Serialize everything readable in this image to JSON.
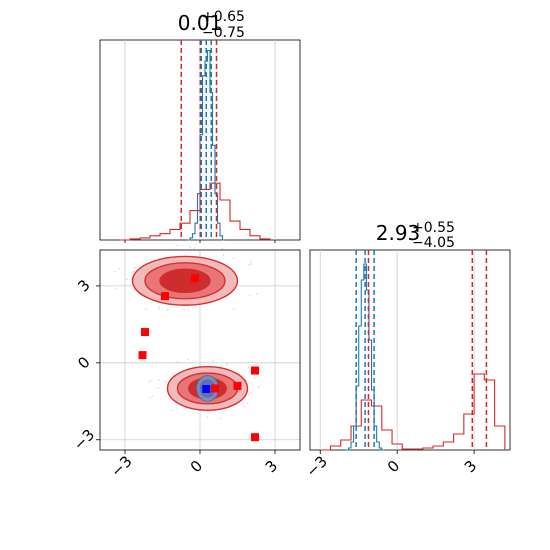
{
  "chart_data": [
    {
      "panel": "param1-marginal",
      "type": "histogram",
      "title": {
        "value": "0.01",
        "upper": "+0.65",
        "lower": "−0.75"
      },
      "xlim": [
        -4,
        4
      ],
      "grid": true,
      "series": [
        {
          "name": "",
          "color": "#1f77b4",
          "bins": [
            -0.5,
            -0.4,
            -0.3,
            -0.2,
            -0.1,
            0.0,
            0.1,
            0.2,
            0.3,
            0.4,
            0.5,
            0.6,
            0.7,
            0.8,
            0.9,
            1.0
          ],
          "heights": [
            0.0,
            0.01,
            0.03,
            0.08,
            0.22,
            0.5,
            0.78,
            0.85,
            0.9,
            0.7,
            0.45,
            0.22,
            0.08,
            0.02,
            0.0
          ]
        },
        {
          "name": "",
          "color": "#d62728",
          "bins": [
            -3.2,
            -2.8,
            -2.4,
            -2.0,
            -1.6,
            -1.2,
            -0.8,
            -0.4,
            0.0,
            0.4,
            0.8,
            1.2,
            1.6,
            2.0,
            2.4,
            2.8
          ],
          "heights": [
            0.0,
            0.005,
            0.01,
            0.02,
            0.03,
            0.05,
            0.08,
            0.14,
            0.24,
            0.27,
            0.19,
            0.09,
            0.05,
            0.02,
            0.005
          ]
        }
      ],
      "quantile_lines": [
        {
          "color": "#d62728",
          "values": [
            -0.75,
            0.01,
            0.66
          ]
        },
        {
          "color": "#1f77b4",
          "values": [
            0.05,
            0.25,
            0.45
          ]
        }
      ]
    },
    {
      "panel": "joint",
      "type": "contour-scatter",
      "xlim": [
        -4,
        4
      ],
      "ylim": [
        -3.4,
        4.4
      ],
      "xticks": [
        "−3",
        "0",
        "3"
      ],
      "yticks": [
        "−3",
        "0",
        "3"
      ],
      "grid": true,
      "red_modes": [
        {
          "cx": -0.6,
          "cy": 3.2,
          "rx": [
            2.1,
            1.6,
            1.0
          ],
          "ry": [
            0.95,
            0.7,
            0.45
          ]
        },
        {
          "cx": 0.3,
          "cy": -1.0,
          "rx": [
            1.6,
            1.2,
            0.75
          ],
          "ry": [
            0.85,
            0.6,
            0.4
          ]
        }
      ],
      "blue_mode": {
        "cx": 0.3,
        "cy": -1.0,
        "rx": [
          0.45,
          0.28
        ],
        "ry": [
          0.5,
          0.32
        ]
      },
      "red_points": [
        [
          -0.2,
          3.3
        ],
        [
          -1.4,
          2.6
        ],
        [
          -2.2,
          1.2
        ],
        [
          -2.3,
          0.3
        ],
        [
          2.2,
          -0.3
        ],
        [
          1.5,
          -0.9
        ],
        [
          2.2,
          -2.9
        ],
        [
          0.6,
          -1.0
        ]
      ],
      "blue_point": [
        0.25,
        -1.02
      ]
    },
    {
      "panel": "param2-marginal",
      "type": "histogram",
      "title": {
        "value": "2.93",
        "upper": "+0.55",
        "lower": "−4.05"
      },
      "xlim": [
        -3.4,
        4.4
      ],
      "xticks": [
        "−3",
        "0",
        "3"
      ],
      "grid": true,
      "series": [
        {
          "name": "",
          "color": "#1f77b4",
          "bins": [
            -2.0,
            -1.9,
            -1.8,
            -1.7,
            -1.6,
            -1.5,
            -1.4,
            -1.3,
            -1.2,
            -1.1,
            -1.0,
            -0.9,
            -0.8,
            -0.7,
            -0.6,
            -0.5
          ],
          "heights": [
            0.0,
            0.01,
            0.04,
            0.12,
            0.32,
            0.62,
            0.85,
            0.93,
            0.8,
            0.55,
            0.3,
            0.12,
            0.04,
            0.01,
            0.0
          ]
        },
        {
          "name": "",
          "color": "#d62728",
          "bins": [
            -3.0,
            -2.6,
            -2.2,
            -1.8,
            -1.4,
            -1.0,
            -0.6,
            -0.2,
            0.2,
            0.6,
            1.0,
            1.4,
            1.8,
            2.2,
            2.6,
            3.0,
            3.4,
            3.8,
            4.2
          ],
          "heights": [
            0.0,
            0.02,
            0.05,
            0.12,
            0.25,
            0.22,
            0.1,
            0.03,
            0.005,
            0.005,
            0.01,
            0.02,
            0.04,
            0.08,
            0.18,
            0.38,
            0.35,
            0.12
          ]
        }
      ],
      "quantile_lines": [
        {
          "color": "#d62728",
          "values": [
            -1.12,
            2.93,
            3.48
          ]
        },
        {
          "color": "#1f77b4",
          "values": [
            -1.6,
            -1.25,
            -0.9
          ]
        }
      ]
    }
  ]
}
